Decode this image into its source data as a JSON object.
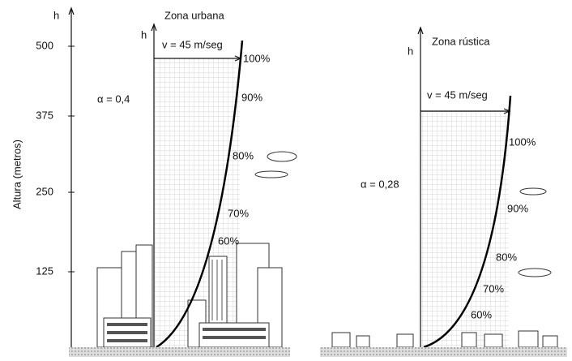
{
  "y_axis": {
    "symbol": "h",
    "label": "Altura (metros)",
    "ticks": [
      500,
      375,
      250,
      125
    ]
  },
  "urban": {
    "symbol": "h",
    "title": "Zona urbana",
    "velocity": "v = 45 m/seg",
    "alpha": "α = 0,4",
    "percent_labels": [
      "100%",
      "90%",
      "80%",
      "70%",
      "60%"
    ]
  },
  "rural": {
    "symbol": "h",
    "title": "Zona rústica",
    "velocity": "v = 45 m/seg",
    "alpha": "α = 0,28",
    "percent_labels": [
      "100%",
      "90%",
      "80%",
      "70%",
      "60%"
    ]
  }
}
